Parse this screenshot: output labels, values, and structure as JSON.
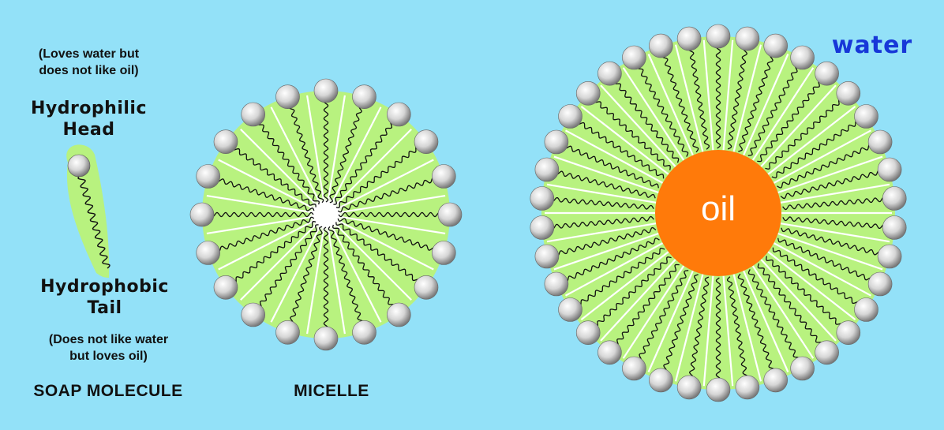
{
  "labels": {
    "head_note_line1": "(Loves water but",
    "head_note_line2": "does not like oil)",
    "head_title_line1": "Hydrophilic",
    "head_title_line2": "Head",
    "tail_title_line1": "Hydrophobic",
    "tail_title_line2": "Tail",
    "tail_note_line1": "(Does not like water",
    "tail_note_line2": "but loves oil)",
    "soap_caption": "SOAP MOLECULE",
    "micelle_caption": "MICELLE",
    "water": "water",
    "oil": "oil"
  },
  "colors": {
    "background": "#93e1f8",
    "tail_region": "#b8f27f",
    "head_sphere": "#d8d8d8",
    "oil_core": "#ff7a0a",
    "water_text": "#1737d8"
  },
  "micelles": {
    "small_head_count": 20,
    "large_head_count": 38
  }
}
